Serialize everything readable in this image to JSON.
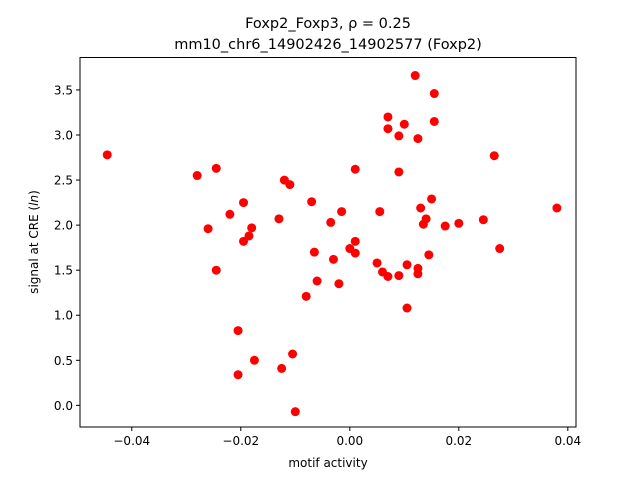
{
  "chart_data": {
    "type": "scatter",
    "title_line1": "Foxp2_Foxp3, ρ = 0.25",
    "title_line2": "mm10_chr6_14902426_14902577 (Foxp2)",
    "xlabel": "motif activity",
    "ylabel": "signal at CRE (ln)",
    "xlim": [
      -0.0495,
      0.0415
    ],
    "ylim": [
      -0.24,
      3.86
    ],
    "xticks": [
      -0.04,
      -0.02,
      0.0,
      0.02,
      0.04
    ],
    "xtick_labels": [
      "−0.04",
      "−0.02",
      "0.00",
      "0.02",
      "0.04"
    ],
    "yticks": [
      0.0,
      0.5,
      1.0,
      1.5,
      2.0,
      2.5,
      3.0,
      3.5
    ],
    "ytick_labels": [
      "0.0",
      "0.5",
      "1.0",
      "1.5",
      "2.0",
      "2.5",
      "3.0",
      "3.5"
    ],
    "grid": false,
    "marker_color": "#ff0000",
    "points": [
      {
        "x": -0.0445,
        "y": 2.78
      },
      {
        "x": -0.028,
        "y": 2.55
      },
      {
        "x": -0.0245,
        "y": 2.63
      },
      {
        "x": -0.026,
        "y": 1.96
      },
      {
        "x": -0.0245,
        "y": 1.5
      },
      {
        "x": -0.022,
        "y": 2.12
      },
      {
        "x": -0.0195,
        "y": 2.25
      },
      {
        "x": -0.0195,
        "y": 1.82
      },
      {
        "x": -0.0185,
        "y": 1.88
      },
      {
        "x": -0.018,
        "y": 1.97
      },
      {
        "x": -0.0205,
        "y": 0.83
      },
      {
        "x": -0.0175,
        "y": 0.5
      },
      {
        "x": -0.0205,
        "y": 0.34
      },
      {
        "x": -0.013,
        "y": 2.07
      },
      {
        "x": -0.012,
        "y": 2.5
      },
      {
        "x": -0.011,
        "y": 2.45
      },
      {
        "x": -0.0125,
        "y": 0.41
      },
      {
        "x": -0.0105,
        "y": 0.57
      },
      {
        "x": -0.01,
        "y": -0.07
      },
      {
        "x": -0.007,
        "y": 2.26
      },
      {
        "x": -0.0065,
        "y": 1.7
      },
      {
        "x": -0.006,
        "y": 1.38
      },
      {
        "x": -0.008,
        "y": 1.21
      },
      {
        "x": -0.0035,
        "y": 2.03
      },
      {
        "x": -0.003,
        "y": 1.62
      },
      {
        "x": -0.0015,
        "y": 2.15
      },
      {
        "x": -0.002,
        "y": 1.35
      },
      {
        "x": 0.0,
        "y": 1.74
      },
      {
        "x": 0.001,
        "y": 1.82
      },
      {
        "x": 0.001,
        "y": 1.69
      },
      {
        "x": 0.001,
        "y": 2.62
      },
      {
        "x": 0.005,
        "y": 1.58
      },
      {
        "x": 0.0055,
        "y": 2.15
      },
      {
        "x": 0.006,
        "y": 1.48
      },
      {
        "x": 0.007,
        "y": 1.43
      },
      {
        "x": 0.007,
        "y": 3.2
      },
      {
        "x": 0.007,
        "y": 3.07
      },
      {
        "x": 0.009,
        "y": 2.99
      },
      {
        "x": 0.009,
        "y": 2.59
      },
      {
        "x": 0.009,
        "y": 1.44
      },
      {
        "x": 0.01,
        "y": 3.12
      },
      {
        "x": 0.0105,
        "y": 1.56
      },
      {
        "x": 0.0105,
        "y": 1.08
      },
      {
        "x": 0.012,
        "y": 3.66
      },
      {
        "x": 0.0125,
        "y": 2.96
      },
      {
        "x": 0.0125,
        "y": 1.52
      },
      {
        "x": 0.0125,
        "y": 1.46
      },
      {
        "x": 0.013,
        "y": 2.19
      },
      {
        "x": 0.0135,
        "y": 2.01
      },
      {
        "x": 0.014,
        "y": 2.07
      },
      {
        "x": 0.0145,
        "y": 1.67
      },
      {
        "x": 0.015,
        "y": 2.29
      },
      {
        "x": 0.0155,
        "y": 3.15
      },
      {
        "x": 0.0155,
        "y": 3.46
      },
      {
        "x": 0.0175,
        "y": 1.99
      },
      {
        "x": 0.02,
        "y": 2.02
      },
      {
        "x": 0.0245,
        "y": 2.06
      },
      {
        "x": 0.0265,
        "y": 2.77
      },
      {
        "x": 0.0275,
        "y": 1.74
      },
      {
        "x": 0.038,
        "y": 2.19
      }
    ]
  }
}
